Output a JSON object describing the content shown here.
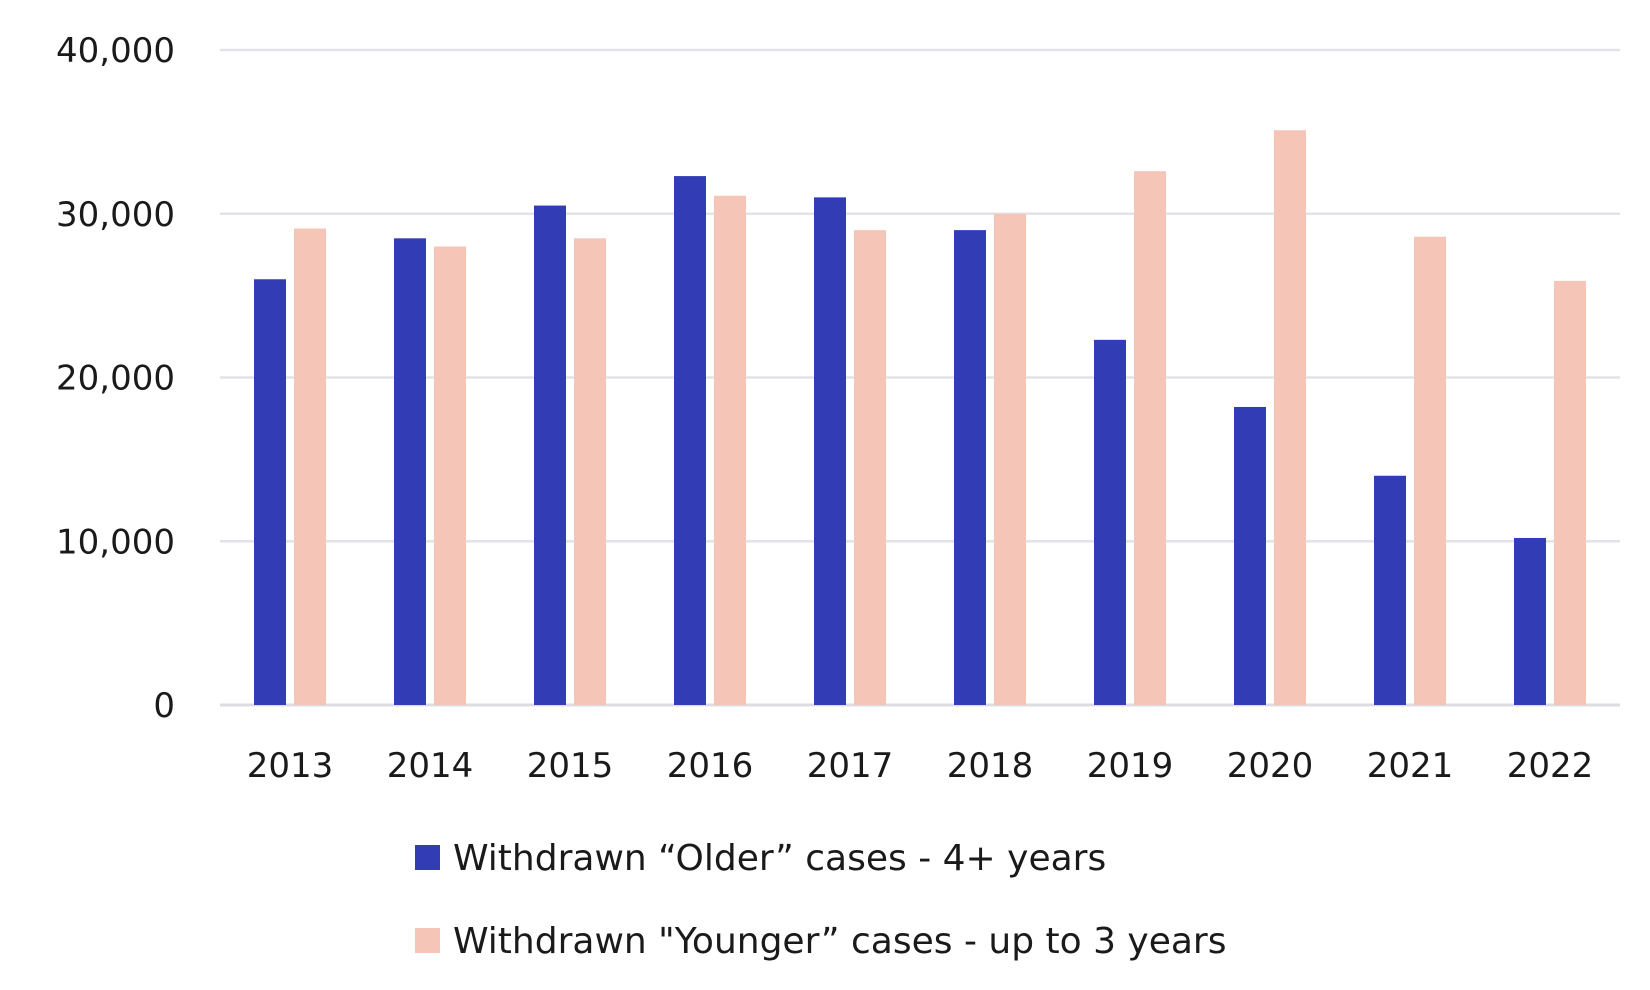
{
  "chart_data": {
    "type": "bar",
    "title": "",
    "xlabel": "",
    "ylabel": "",
    "categories": [
      "2013",
      "2014",
      "2015",
      "2016",
      "2017",
      "2018",
      "2019",
      "2020",
      "2021",
      "2022"
    ],
    "series": [
      {
        "name": "Withdrawn “Older” cases - 4+ years",
        "color": "#323cb4",
        "values": [
          26000,
          28500,
          30500,
          32300,
          31000,
          29000,
          22300,
          18200,
          14000,
          10200
        ]
      },
      {
        "name": "Withdrawn \"Younger” cases - up to 3 years",
        "color": "#f5c6b8",
        "values": [
          29100,
          28000,
          28500,
          31100,
          29000,
          30000,
          32600,
          35100,
          28600,
          25900
        ]
      }
    ],
    "ylim": [
      0,
      40000
    ],
    "yticks": [
      "0",
      "10,000",
      "20,000",
      "30,000",
      "40,000"
    ],
    "ytick_values": [
      0,
      10000,
      20000,
      30000,
      40000
    ],
    "grid": true,
    "legend_position": "bottom"
  }
}
